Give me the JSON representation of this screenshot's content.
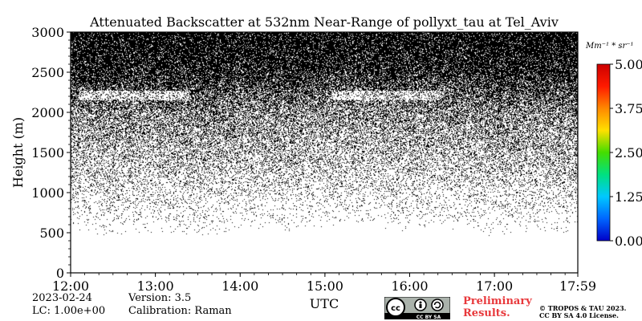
{
  "chart_data": {
    "type": "heatmap",
    "title": "Attenuated Backscatter at 532nm Near-Range of pollyxt_tau at Tel_Aviv",
    "xlabel": "UTC",
    "ylabel": "Height (m)",
    "x_ticks": [
      "12:00",
      "13:00",
      "14:00",
      "15:00",
      "16:00",
      "17:00",
      "17:59"
    ],
    "x_range": [
      "12:00",
      "17:59"
    ],
    "y_ticks": [
      0,
      500,
      1000,
      1500,
      2000,
      2500,
      3000
    ],
    "ylim": [
      0,
      3000
    ],
    "colorbar": {
      "unit": "Mm⁻¹ * sr⁻¹",
      "ticks": [
        "0.00",
        "1.25",
        "2.50",
        "3.75",
        "5.00"
      ],
      "range": [
        0,
        5
      ],
      "colormap": [
        "#0000c8",
        "#0066ff",
        "#00c8ff",
        "#00e080",
        "#44dd00",
        "#ffe000",
        "#ff8800",
        "#ff1a00",
        "#cc0000"
      ]
    },
    "grid": false,
    "noise_profile": {
      "description_heights_m": [
        0,
        500,
        700,
        1000,
        1500,
        2000,
        2200,
        2500,
        3000
      ],
      "dot_density": [
        0.0,
        0.0,
        0.05,
        0.12,
        0.28,
        0.45,
        0.6,
        0.82,
        0.9
      ]
    }
  },
  "footer": {
    "date": "2023-02-24",
    "lc": "LC: 1.00e+00",
    "version": "Version: 3.5",
    "calibration": "Calibration: Raman",
    "xlabel": "UTC",
    "preliminary_line1": "Preliminary",
    "preliminary_line2": "Results.",
    "copyright_line1": "© TROPOS & TAU 2023.",
    "copyright_line2": "CC BY SA 4.0 License.",
    "license_badge": "CC BY SA"
  },
  "colors": {
    "preliminary": "#e8383b",
    "background": "#ffffff",
    "noise": "#000000"
  }
}
